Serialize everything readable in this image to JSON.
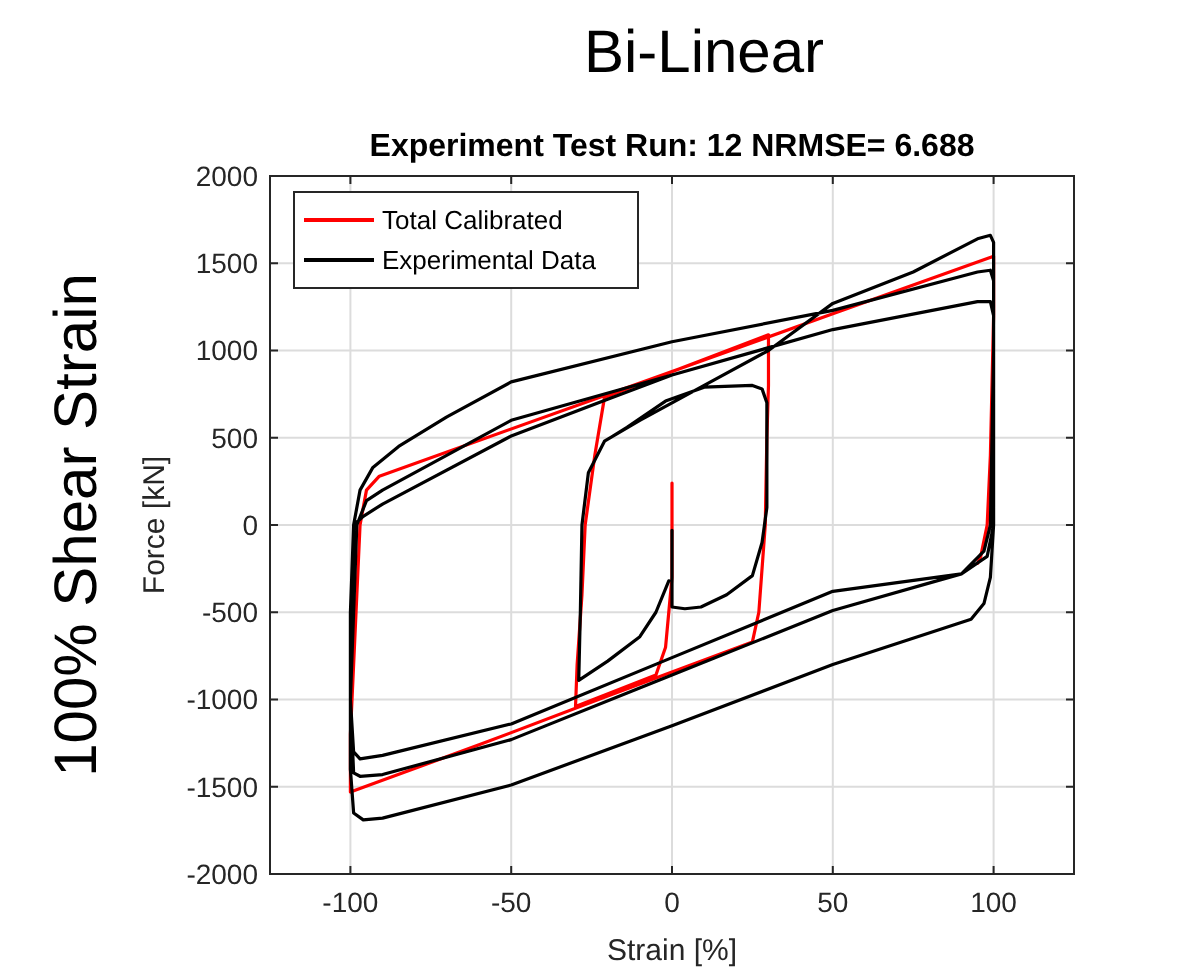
{
  "chart_data": {
    "type": "line",
    "title": "Bi-Linear",
    "subtitle": "Experiment Test Run: 12  NRMSE= 6.688",
    "xlabel": "Strain [%]",
    "ylabel": "Force [kN]",
    "annotations": [
      "100% Shear Strain"
    ],
    "xlim": [
      -125,
      125
    ],
    "xticks": [
      -100,
      -50,
      0,
      50,
      100
    ],
    "ylim": [
      -2000,
      2000
    ],
    "yticks": [
      -2000,
      -1500,
      -1000,
      -500,
      0,
      500,
      1000,
      1500,
      2000
    ],
    "grid": true,
    "legend": "top left",
    "series": [
      {
        "name": "Total Calibrated",
        "color": "#ff0000",
        "x": [
          0,
          0,
          -1,
          -2,
          -5,
          -30,
          -29.5,
          -28,
          -27,
          -24,
          -21,
          30,
          30,
          29.5,
          29,
          27,
          25,
          -20,
          -60,
          -100,
          -100,
          -99,
          -98,
          -97,
          -95,
          -91,
          0,
          50,
          100,
          100,
          99.5,
          99,
          98,
          96,
          95
        ],
        "values": [
          240,
          -300,
          -500,
          -700,
          -860,
          -1040,
          -800,
          -400,
          0,
          400,
          730,
          1090,
          800,
          500,
          0,
          -500,
          -670,
          -980,
          -1260,
          -1530,
          -1200,
          -800,
          -400,
          0,
          200,
          280,
          880,
          1210,
          1540,
          1200,
          800,
          400,
          0,
          -180,
          -220
        ]
      },
      {
        "name": "Experimental Data",
        "color": "#000000",
        "x": [
          0,
          0,
          4,
          9,
          17,
          25,
          28,
          29.5,
          29.5,
          28,
          25,
          10,
          -2,
          -14,
          -21,
          null,
          -1,
          -5,
          -10,
          -20,
          -29,
          -28.5,
          -28,
          -26,
          -21,
          -10,
          10,
          30,
          50,
          75,
          95,
          99,
          100,
          100,
          99,
          97,
          90,
          50,
          0,
          -50,
          -90,
          -97,
          -99,
          -100,
          -100,
          -99,
          -97,
          -93,
          -85,
          -70,
          -50,
          0,
          50,
          95,
          99,
          100,
          100,
          98,
          90,
          50,
          0,
          -50,
          -90,
          -97,
          -99,
          -100,
          -98,
          -95,
          -90,
          -50,
          0,
          50,
          95,
          99,
          100,
          100,
          99,
          97,
          93,
          50,
          0,
          -50,
          -90,
          -96,
          -99,
          -100,
          -100,
          -99,
          -96,
          -90,
          -50,
          -20,
          0
        ],
        "values": [
          -30,
          -470,
          -480,
          -470,
          -400,
          -290,
          -100,
          100,
          700,
          780,
          800,
          790,
          710,
          560,
          480,
          null,
          -320,
          -500,
          -640,
          -780,
          -890,
          -500,
          0,
          300,
          480,
          600,
          800,
          1000,
          1270,
          1450,
          1640,
          1660,
          1620,
          1000,
          0,
          -150,
          -280,
          -380,
          -760,
          -1140,
          -1320,
          -1340,
          -1300,
          -1000,
          -500,
          0,
          200,
          330,
          450,
          620,
          820,
          1050,
          1230,
          1450,
          1460,
          1400,
          0,
          -180,
          -280,
          -490,
          -860,
          -1230,
          -1430,
          -1440,
          -1420,
          -1000,
          0,
          140,
          200,
          600,
          860,
          1120,
          1280,
          1280,
          1200,
          0,
          -300,
          -450,
          -540,
          -800,
          -1150,
          -1490,
          -1680,
          -1690,
          -1650,
          -1400,
          -500,
          0,
          50,
          120,
          510,
          720,
          860
        ]
      }
    ]
  }
}
